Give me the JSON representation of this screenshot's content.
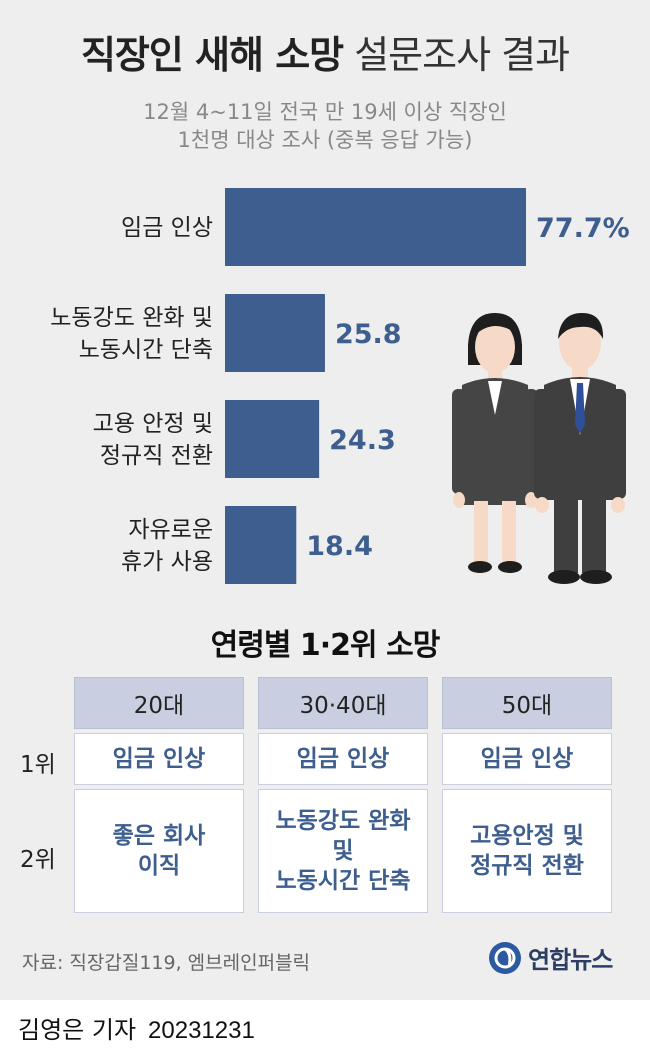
{
  "title": {
    "bold": "직장인 새해 소망",
    "light": "설문조사 결과"
  },
  "subtitle": {
    "line1": "12월 4~11일 전국 만 19세 이상 직장인",
    "line2": "1천명 대상 조사 (중복 응답 가능)"
  },
  "chart_data": {
    "type": "bar",
    "orientation": "horizontal",
    "categories": [
      "임금 인상",
      "노동강도 완화 및 노동시간 단축",
      "고용 안정 및 정규직 전환",
      "자유로운 휴가 사용"
    ],
    "category_lines": [
      [
        "임금 인상"
      ],
      [
        "노동강도 완화 및",
        "노동시간 단축"
      ],
      [
        "고용 안정 및",
        "정규직 전환"
      ],
      [
        "자유로운",
        "휴가 사용"
      ]
    ],
    "values": [
      77.7,
      25.8,
      24.3,
      18.4
    ],
    "value_labels": [
      "77.7%",
      "25.8",
      "24.3",
      "18.4"
    ],
    "unit": "%",
    "xlim": [
      0,
      77.7
    ],
    "bar_color": "#3d5e8e",
    "grid": false,
    "legend": "none"
  },
  "age_section": {
    "title": "연령별 1·2위 소망",
    "rank_labels": [
      "1위",
      "2위"
    ],
    "columns": [
      {
        "head": "20대",
        "rank1": "임금 인상",
        "rank2_lines": [
          "좋은 회사",
          "이직"
        ]
      },
      {
        "head": "30·40대",
        "rank1": "임금 인상",
        "rank2_lines": [
          "노동강도 완화",
          "및",
          "노동시간 단축"
        ]
      },
      {
        "head": "50대",
        "rank1": "임금 인상",
        "rank2_lines": [
          "고용안정 및",
          "정규직 전환"
        ]
      }
    ]
  },
  "source": "자료: 직장갑질119, 엠브레인퍼블릭",
  "logo": {
    "text": "연합뉴스",
    "icon": "yonhap-logo-icon"
  },
  "footer": {
    "author": "김영은 기자",
    "date": "20231231"
  },
  "colors": {
    "accent": "#3d5e8e",
    "panel": "#eeeeee",
    "header_cell": "#c9cfe0"
  }
}
